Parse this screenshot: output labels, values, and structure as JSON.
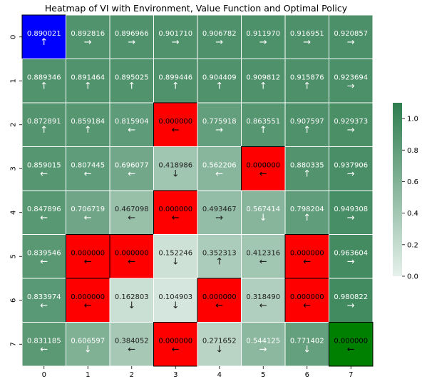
{
  "chart_data": {
    "type": "heatmap",
    "title": "Heatmap of VI with Environment, Value Function and Optimal Policy",
    "x_ticks": [
      "0",
      "1",
      "2",
      "3",
      "4",
      "5",
      "6",
      "7"
    ],
    "y_ticks": [
      "0",
      "1",
      "2",
      "3",
      "4",
      "5",
      "6",
      "7"
    ],
    "values": [
      [
        "0.890021",
        "0.892816",
        "0.896966",
        "0.901710",
        "0.906782",
        "0.911970",
        "0.916951",
        "0.920857"
      ],
      [
        "0.889346",
        "0.891464",
        "0.895025",
        "0.899446",
        "0.904409",
        "0.909812",
        "0.915876",
        "0.923694"
      ],
      [
        "0.872891",
        "0.859184",
        "0.815904",
        "0.000000",
        "0.775918",
        "0.863551",
        "0.907597",
        "0.929373"
      ],
      [
        "0.859015",
        "0.807445",
        "0.696077",
        "0.418986",
        "0.562206",
        "0.000000",
        "0.880335",
        "0.937906"
      ],
      [
        "0.847896",
        "0.706719",
        "0.467098",
        "0.000000",
        "0.493467",
        "0.567414",
        "0.798204",
        "0.949308"
      ],
      [
        "0.839546",
        "0.000000",
        "0.000000",
        "0.152246",
        "0.352313",
        "0.412316",
        "0.000000",
        "0.963604"
      ],
      [
        "0.833974",
        "0.000000",
        "0.162803",
        "0.104903",
        "0.000000",
        "0.318490",
        "0.000000",
        "0.980822"
      ],
      [
        "0.831185",
        "0.606597",
        "0.384052",
        "0.000000",
        "0.271652",
        "0.544125",
        "0.771402",
        "0.000000"
      ]
    ],
    "policy": [
      [
        "↑",
        "→",
        "→",
        "→",
        "→",
        "→",
        "→",
        "→"
      ],
      [
        "↑",
        "↑",
        "↑",
        "↑",
        "↑",
        "↑",
        "↑",
        "→"
      ],
      [
        "↑",
        "↑",
        "←",
        "←",
        "→",
        "↑",
        "↑",
        "→"
      ],
      [
        "←",
        "←",
        "←",
        "↓",
        "←",
        "←",
        "↑",
        "→"
      ],
      [
        "←",
        "←",
        "←",
        "←",
        "→",
        "↓",
        "↑",
        "→"
      ],
      [
        "←",
        "←",
        "←",
        "↓",
        "↑",
        "←",
        "←",
        "→"
      ],
      [
        "←",
        "←",
        "↓",
        "↓",
        "←",
        "←",
        "←",
        "→"
      ],
      [
        "←",
        "↓",
        "←",
        "←",
        "↓",
        "→",
        "↓",
        "←"
      ]
    ],
    "special_cells": [
      {
        "row": 0,
        "col": 0,
        "kind": "start",
        "color": "#0000ff"
      },
      {
        "row": 2,
        "col": 3,
        "kind": "hole",
        "color": "#ff0000"
      },
      {
        "row": 3,
        "col": 5,
        "kind": "hole",
        "color": "#ff0000"
      },
      {
        "row": 4,
        "col": 3,
        "kind": "hole",
        "color": "#ff0000"
      },
      {
        "row": 5,
        "col": 1,
        "kind": "hole",
        "color": "#ff0000"
      },
      {
        "row": 5,
        "col": 2,
        "kind": "hole",
        "color": "#ff0000"
      },
      {
        "row": 5,
        "col": 6,
        "kind": "hole",
        "color": "#ff0000"
      },
      {
        "row": 6,
        "col": 1,
        "kind": "hole",
        "color": "#ff0000"
      },
      {
        "row": 6,
        "col": 4,
        "kind": "hole",
        "color": "#ff0000"
      },
      {
        "row": 6,
        "col": 6,
        "kind": "hole",
        "color": "#ff0000"
      },
      {
        "row": 7,
        "col": 3,
        "kind": "hole",
        "color": "#ff0000"
      },
      {
        "row": 7,
        "col": 7,
        "kind": "goal",
        "color": "#008000"
      }
    ],
    "colorbar": {
      "vmin": 0.0,
      "vmax": 1.1,
      "ticks": [
        "0.0",
        "0.2",
        "0.4",
        "0.6",
        "0.8",
        "1.0"
      ],
      "low_color": "#e6f1ec",
      "high_color": "#2e7d4f",
      "position": "right"
    },
    "grid": true,
    "legend": "none"
  }
}
